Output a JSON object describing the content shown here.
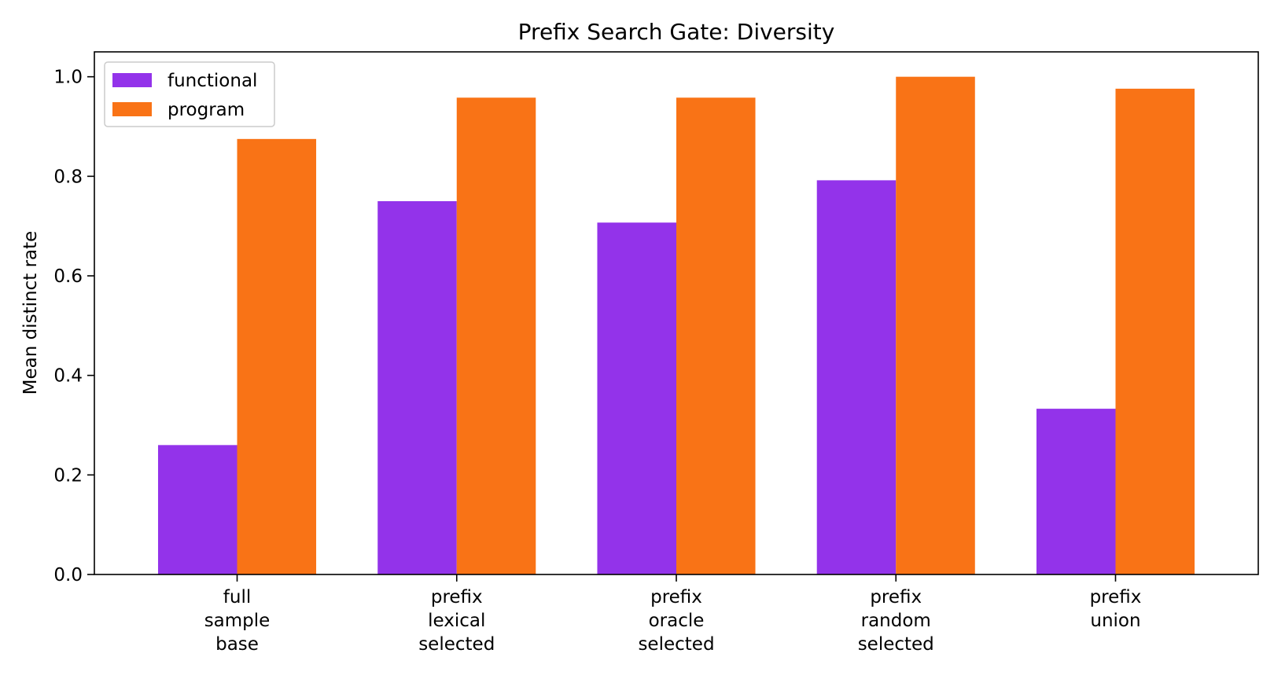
{
  "chart_data": {
    "type": "bar",
    "title": "Prefix Search Gate: Diversity",
    "xlabel": "",
    "ylabel": "Mean distinct rate",
    "categories": [
      [
        "full",
        "sample",
        "base"
      ],
      [
        "prefix",
        "lexical",
        "selected"
      ],
      [
        "prefix",
        "oracle",
        "selected"
      ],
      [
        "prefix",
        "random",
        "selected"
      ],
      [
        "prefix",
        "union"
      ]
    ],
    "series": [
      {
        "name": "functional",
        "color": "#9333ea",
        "values": [
          0.26,
          0.75,
          0.707,
          0.792,
          0.333
        ]
      },
      {
        "name": "program",
        "color": "#f97316",
        "values": [
          0.875,
          0.958,
          0.958,
          1.0,
          0.976
        ]
      }
    ],
    "ylim": [
      0,
      1.05
    ],
    "yticks": [
      "0.0",
      "0.2",
      "0.4",
      "0.6",
      "0.8",
      "1.0"
    ],
    "grid": false,
    "legend_position": "top-left"
  }
}
